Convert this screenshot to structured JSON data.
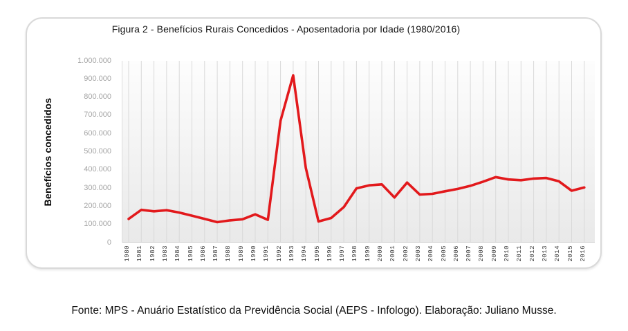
{
  "figure": {
    "title": "Figura 2 - Benefícios Rurais Concedidos - Aposentadoria por Idade (1980/2016)"
  },
  "footer": {
    "text": "Fonte: MPS - Anuário Estatístico da Previdência Social (AEPS - Infologo). Elaboração: Juliano Musse."
  },
  "chart_data": {
    "type": "line",
    "title": "Figura 2 - Benefícios Rurais Concedidos - Aposentadoria por Idade (1980/2016)",
    "xlabel": "",
    "ylabel": "Benefícios concedidos",
    "x": [
      1980,
      1981,
      1982,
      1983,
      1984,
      1985,
      1986,
      1987,
      1988,
      1989,
      1990,
      1991,
      1992,
      1993,
      1994,
      1995,
      1996,
      1997,
      1998,
      1999,
      2000,
      2001,
      2002,
      2003,
      2004,
      2005,
      2006,
      2007,
      2008,
      2009,
      2010,
      2011,
      2012,
      2013,
      2014,
      2015,
      2016
    ],
    "series": [
      {
        "name": "Benefícios concedidos",
        "color": "#e2191c",
        "values": [
          130000,
          180000,
          172000,
          178000,
          165000,
          148000,
          130000,
          112000,
          122000,
          128000,
          155000,
          125000,
          670000,
          920000,
          410000,
          116000,
          135000,
          195000,
          298000,
          315000,
          320000,
          248000,
          330000,
          264000,
          268000,
          282000,
          295000,
          312000,
          335000,
          360000,
          347000,
          343000,
          352000,
          355000,
          337000,
          285000,
          303000
        ]
      }
    ],
    "ylim": [
      0,
      1000000
    ],
    "ytick_step": 100000,
    "ytick_labels": [
      "0",
      "100.000",
      "200.000",
      "300.000",
      "400.000",
      "500.000",
      "600.000",
      "700.000",
      "800.000",
      "900.000",
      "1.000.000"
    ],
    "grid": "vertical-only",
    "legend": "none"
  }
}
